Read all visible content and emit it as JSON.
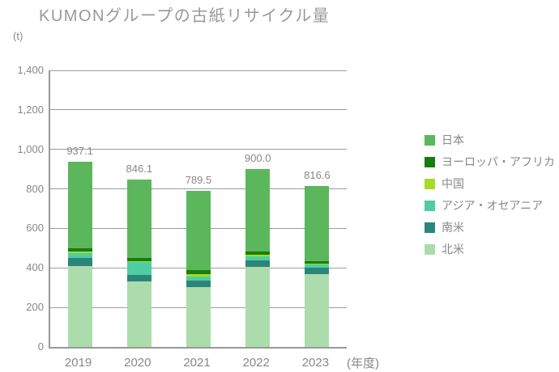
{
  "chart_data": {
    "type": "bar",
    "stacked": true,
    "title": "KUMONグループの古紙リサイクル量",
    "unit_label": "(t)",
    "xlabel": "(年度)",
    "categories": [
      "2019",
      "2020",
      "2021",
      "2022",
      "2023"
    ],
    "total_labels": [
      "937.1",
      "846.1",
      "789.5",
      "900.0",
      "816.6"
    ],
    "ylim": [
      0,
      1400
    ],
    "ytick_step": 200,
    "ytick_labels": [
      "0",
      "200",
      "400",
      "600",
      "800",
      "1,000",
      "1,200",
      "1,400"
    ],
    "grid": true,
    "legend_position": "right",
    "series": [
      {
        "name": "日本",
        "slug": "japan",
        "color": "#5CB75C",
        "values": [
          438.1,
          396.1,
          401.5,
          418.0,
          380.6
        ]
      },
      {
        "name": "ヨーロッパ・アフリカ",
        "slug": "europe-africa",
        "color": "#187D0D",
        "values": [
          17,
          16,
          21,
          16,
          16
        ]
      },
      {
        "name": "中国",
        "slug": "china",
        "color": "#A6DB28",
        "values": [
          8,
          5,
          12,
          8,
          4
        ]
      },
      {
        "name": "アジア・オセアニア",
        "slug": "asia-oceania",
        "color": "#4FCDA2",
        "values": [
          25,
          66,
          21,
          21,
          16
        ]
      },
      {
        "name": "南米",
        "slug": "south-america",
        "color": "#2B8679",
        "values": [
          41,
          33,
          29,
          33,
          33
        ]
      },
      {
        "name": "北米",
        "slug": "north-america",
        "color": "#ACDCAC",
        "values": [
          408,
          330,
          305,
          404,
          367
        ]
      }
    ]
  }
}
